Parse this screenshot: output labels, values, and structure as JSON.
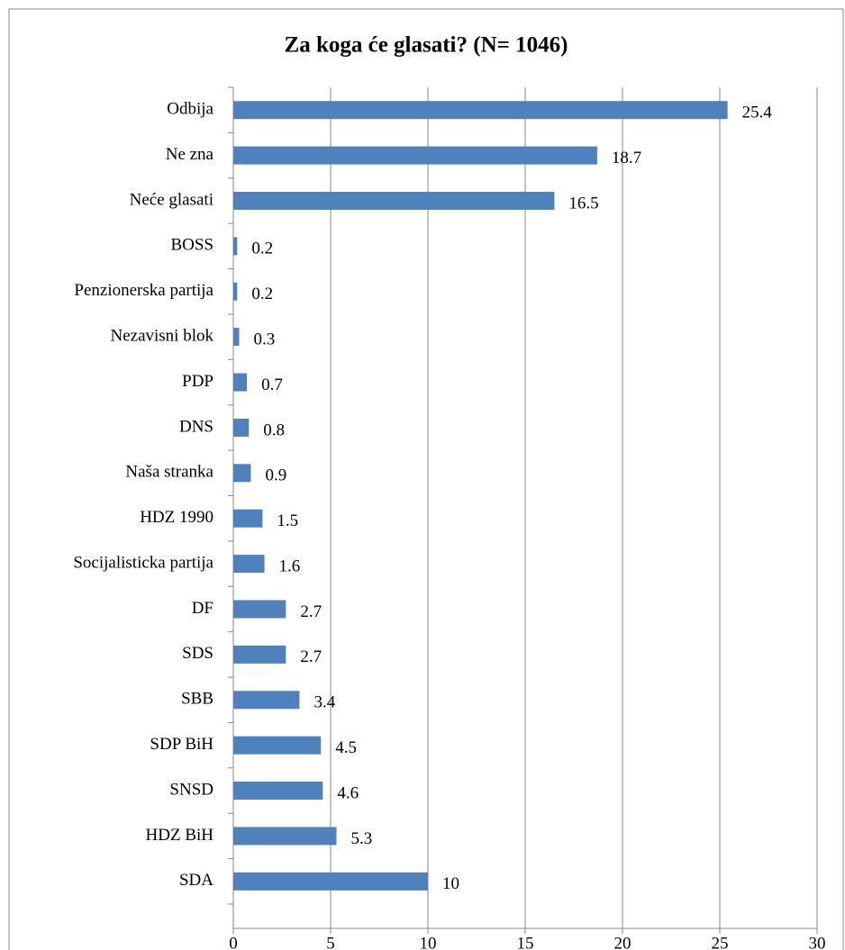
{
  "chart_data": {
    "type": "bar",
    "orientation": "horizontal",
    "title": "Za koga će glasati? (N= 1046)",
    "categories": [
      "Odbija",
      "Ne zna",
      "Neće glasati",
      "BOSS",
      "Penzionerska partija",
      "Nezavisni blok",
      "PDP",
      "DNS",
      "Naša stranka",
      "HDZ 1990",
      "Socijalisticka partija",
      "DF",
      "SDS",
      "SBB",
      "SDP BiH",
      "SNSD",
      "HDZ BiH",
      "SDA"
    ],
    "values": [
      25.4,
      18.7,
      16.5,
      0.2,
      0.2,
      0.3,
      0.7,
      0.8,
      0.9,
      1.5,
      1.6,
      2.7,
      2.7,
      3.4,
      4.5,
      4.6,
      5.3,
      10
    ],
    "color": "#4f81bd",
    "xlim": [
      0,
      30
    ],
    "xticks": [
      0,
      5,
      10,
      15,
      20,
      25,
      30
    ],
    "grid": true
  }
}
